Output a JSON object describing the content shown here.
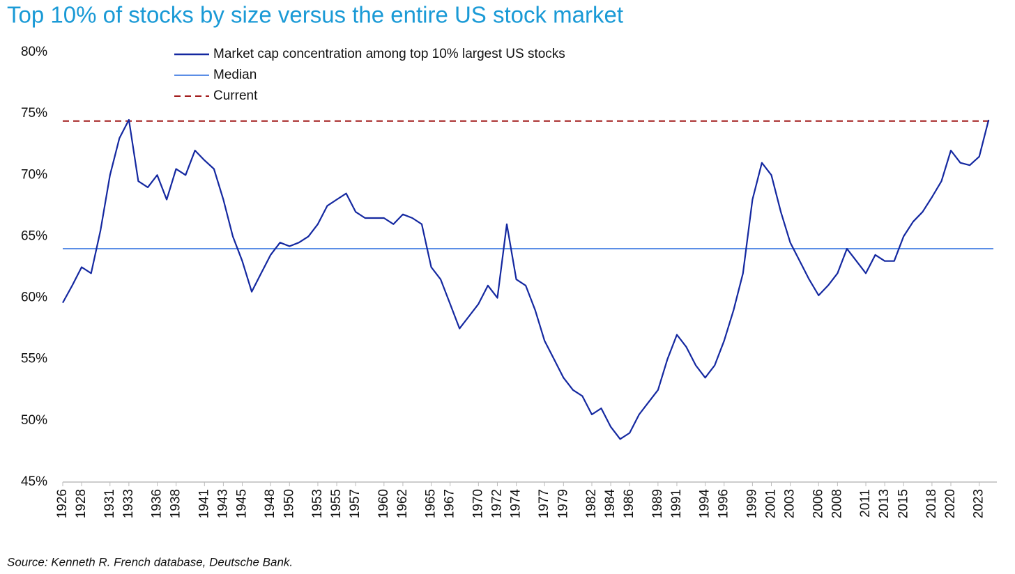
{
  "chart_data": {
    "type": "line",
    "title": "Top 10% of stocks by size versus the entire US stock market",
    "source": "Source: Kenneth R. French database, Deutsche Bank.",
    "x": [
      1926,
      1927,
      1928,
      1929,
      1930,
      1931,
      1932,
      1933,
      1934,
      1935,
      1936,
      1937,
      1938,
      1939,
      1940,
      1941,
      1942,
      1943,
      1944,
      1945,
      1946,
      1947,
      1948,
      1949,
      1950,
      1951,
      1952,
      1953,
      1954,
      1955,
      1956,
      1957,
      1958,
      1959,
      1960,
      1961,
      1962,
      1963,
      1964,
      1965,
      1966,
      1967,
      1968,
      1969,
      1970,
      1971,
      1972,
      1973,
      1974,
      1975,
      1976,
      1977,
      1978,
      1979,
      1980,
      1981,
      1982,
      1983,
      1984,
      1985,
      1986,
      1987,
      1988,
      1989,
      1990,
      1991,
      1992,
      1993,
      1994,
      1995,
      1996,
      1997,
      1998,
      1999,
      2000,
      2001,
      2002,
      2003,
      2004,
      2005,
      2006,
      2007,
      2008,
      2009,
      2010,
      2011,
      2012,
      2013,
      2014,
      2015,
      2016,
      2017,
      2018,
      2019,
      2020,
      2021,
      2022,
      2023,
      2024
    ],
    "series": [
      {
        "name": "Market cap concentration among top 10% largest US stocks",
        "color": "#1428a0",
        "values": [
          59.6,
          61,
          62.5,
          62,
          65.5,
          70,
          73,
          74.5,
          69.5,
          69,
          70,
          68,
          70.5,
          70,
          72,
          71.2,
          70.5,
          68,
          65,
          63,
          60.5,
          62,
          63.5,
          64.5,
          64.2,
          64.5,
          65,
          66,
          67.5,
          68,
          68.5,
          67,
          66.5,
          66.5,
          66.5,
          66,
          66.8,
          66.5,
          66,
          62.5,
          61.5,
          59.5,
          57.5,
          58.5,
          59.5,
          61,
          60,
          66,
          61.5,
          61,
          59,
          56.5,
          55,
          53.5,
          52.5,
          52,
          50.5,
          51,
          49.5,
          48.5,
          49,
          50.5,
          51.5,
          52.5,
          55,
          57,
          56,
          54.5,
          53.5,
          54.5,
          56.5,
          59,
          62,
          68,
          71,
          70,
          67,
          64.5,
          63,
          61.5,
          60.2,
          61,
          62,
          64,
          63,
          62,
          63.5,
          63,
          63,
          65,
          66.2,
          67,
          68.2,
          69.5,
          72,
          71,
          70.8,
          71.5,
          74.5
        ]
      }
    ],
    "reference_lines": [
      {
        "name": "Median",
        "value": 64,
        "color": "#5b8ee6",
        "dashed": false
      },
      {
        "name": "Current",
        "value": 74.4,
        "color": "#a01818",
        "dashed": true
      }
    ],
    "xlim": [
      1926,
      2024.5
    ],
    "xticks": [
      1926,
      1928,
      1931,
      1933,
      1936,
      1938,
      1941,
      1943,
      1945,
      1948,
      1950,
      1953,
      1955,
      1957,
      1960,
      1962,
      1965,
      1967,
      1970,
      1972,
      1974,
      1977,
      1979,
      1982,
      1984,
      1986,
      1989,
      1991,
      1994,
      1996,
      1999,
      2001,
      2003,
      2006,
      2008,
      2011,
      2013,
      2015,
      2018,
      2020,
      2023
    ],
    "ylim": [
      45,
      80
    ],
    "yticks": [
      {
        "value": 45,
        "label": "45%"
      },
      {
        "value": 50,
        "label": "50%"
      },
      {
        "value": 55,
        "label": "55%"
      },
      {
        "value": 60,
        "label": "60%"
      },
      {
        "value": 65,
        "label": "65%"
      },
      {
        "value": 70,
        "label": "70%"
      },
      {
        "value": 75,
        "label": "75%"
      },
      {
        "value": 80,
        "label": "80%"
      }
    ],
    "grid": false
  }
}
